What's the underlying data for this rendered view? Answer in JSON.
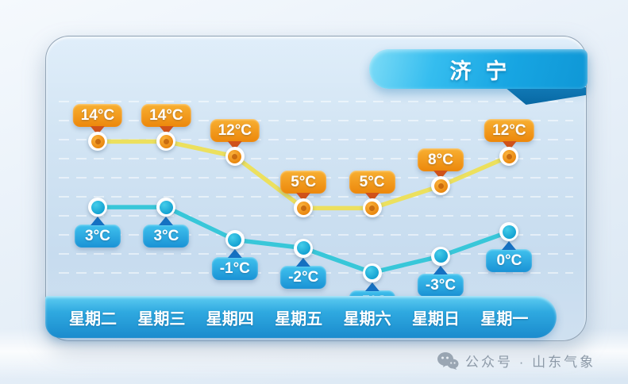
{
  "title_banner": {
    "text": "济宁"
  },
  "chart_data": {
    "type": "line",
    "title": "济宁",
    "categories": [
      "星期二",
      "星期三",
      "星期四",
      "星期五",
      "星期六",
      "星期日",
      "星期一"
    ],
    "series": [
      {
        "name": "high-temperature",
        "unit": "°C",
        "values": [
          14,
          14,
          12,
          5,
          5,
          8,
          12
        ],
        "line_color": "#ece05e",
        "marker_color": "#ef8d12",
        "label_bg_top": "#f8b032",
        "label_bg_bottom": "#ec870b",
        "pointer_color": "#d0521a",
        "label_position": "above"
      },
      {
        "name": "low-temperature",
        "unit": "°C",
        "values": [
          3,
          3,
          -1,
          -2,
          -5,
          -3,
          0
        ],
        "line_color": "#38c7d9",
        "marker_color": "#18a8d8",
        "label_bg_top": "#40c2ee",
        "label_bg_bottom": "#1a92d5",
        "pointer_color": "#1571c2",
        "label_position": "below"
      }
    ],
    "grid": "horizontal-dashed",
    "legend_position": "none"
  },
  "watermark": {
    "icon": "wechat-icon",
    "text": "公众号 · 山东气象"
  },
  "colors": {
    "ribbon_blue": "#1fa9e4",
    "axis_bar_blue": "#2aa3dd",
    "panel_bg": "#cfe2f2",
    "grid_line": "#ffffff",
    "watermark_gray": "#8d9aa8"
  }
}
